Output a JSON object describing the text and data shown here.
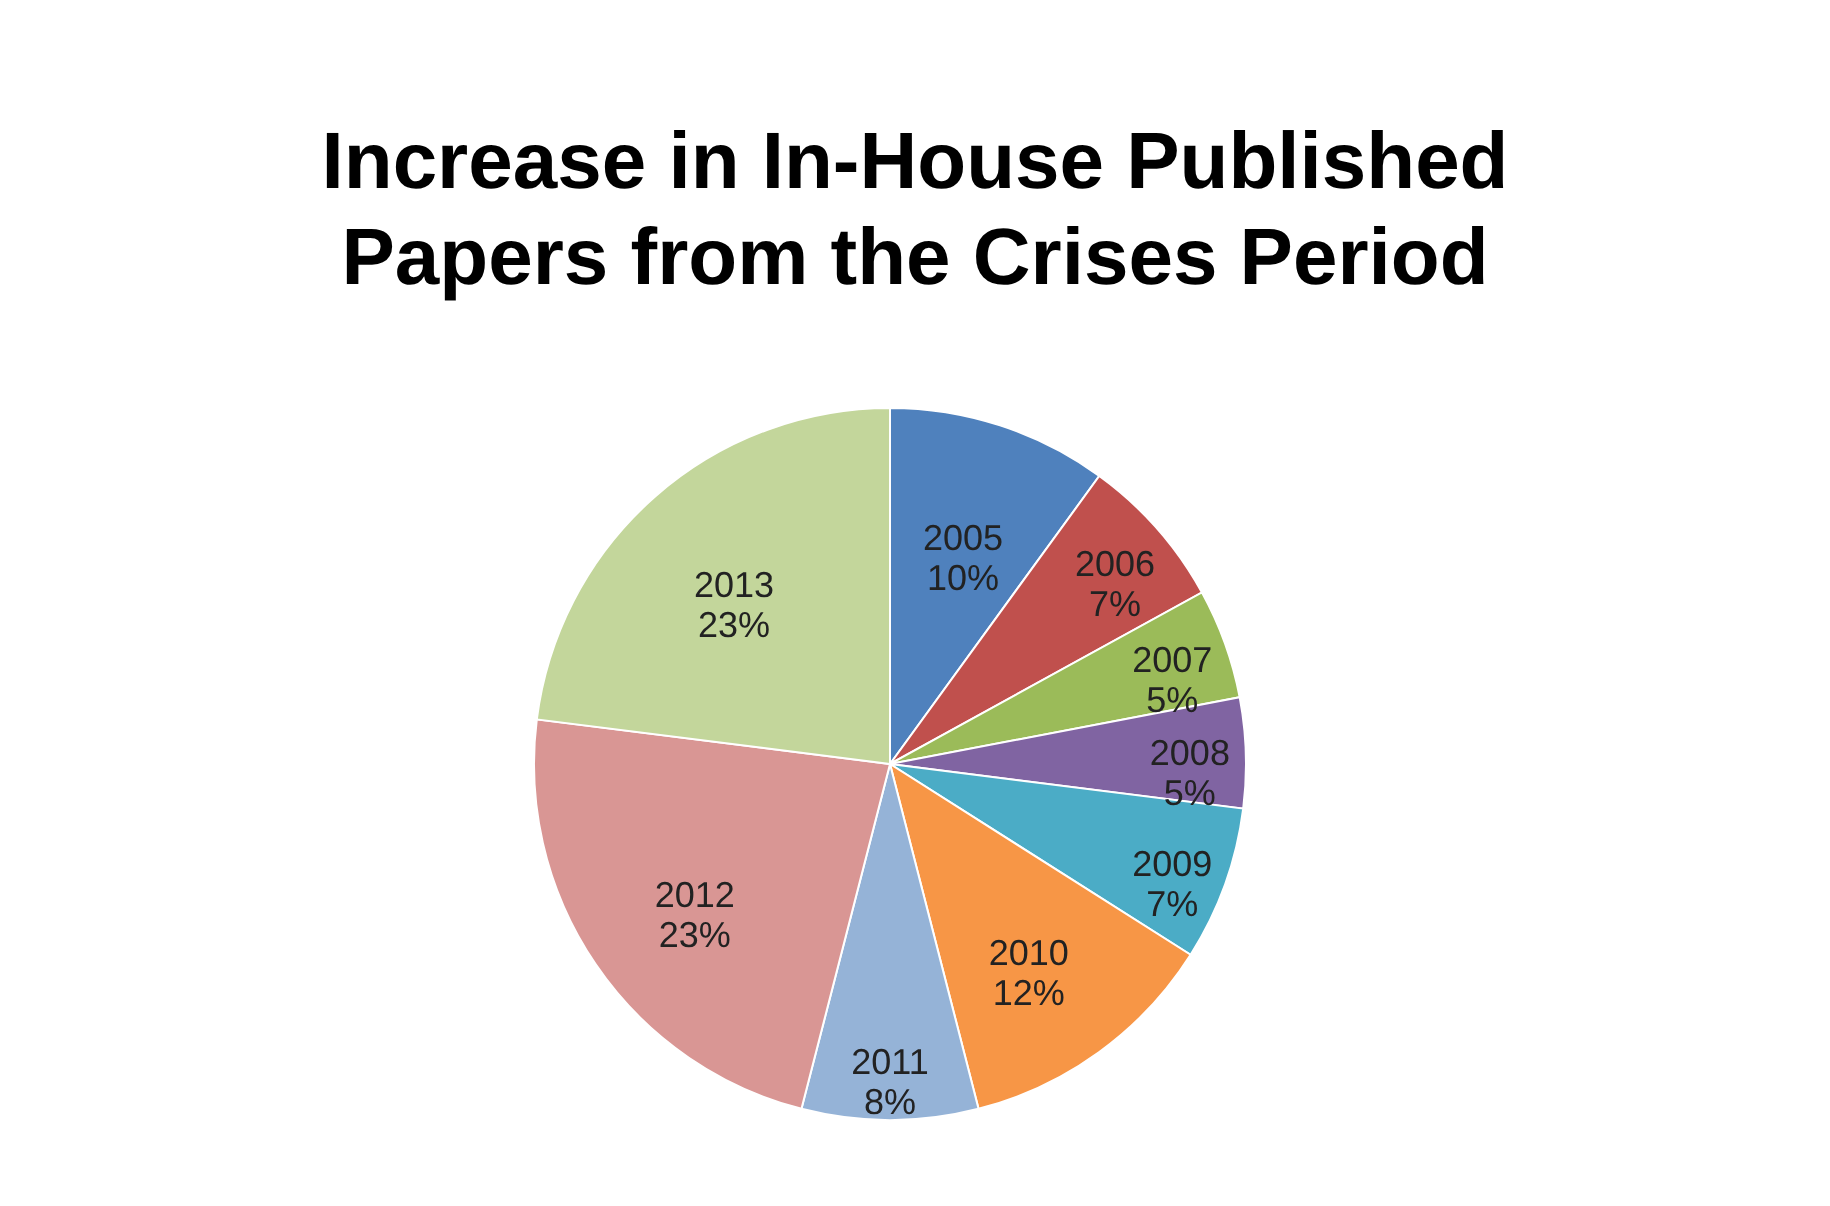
{
  "chart_data": {
    "type": "pie",
    "title": "Increase in In-House Published Papers from the Crises Period",
    "categories": [
      "2005",
      "2006",
      "2007",
      "2008",
      "2009",
      "2010",
      "2011",
      "2012",
      "2013"
    ],
    "values": [
      10,
      7,
      5,
      5,
      7,
      12,
      8,
      23,
      23
    ],
    "value_labels": [
      "10%",
      "7%",
      "5%",
      "5%",
      "7%",
      "12%",
      "8%",
      "23%",
      "23%"
    ],
    "colors": [
      "#4f81bd",
      "#c0504d",
      "#9bbb59",
      "#8064a2",
      "#4bacc6",
      "#f79646",
      "#95b3d7",
      "#d99694",
      "#c3d69b"
    ],
    "legend": false
  }
}
